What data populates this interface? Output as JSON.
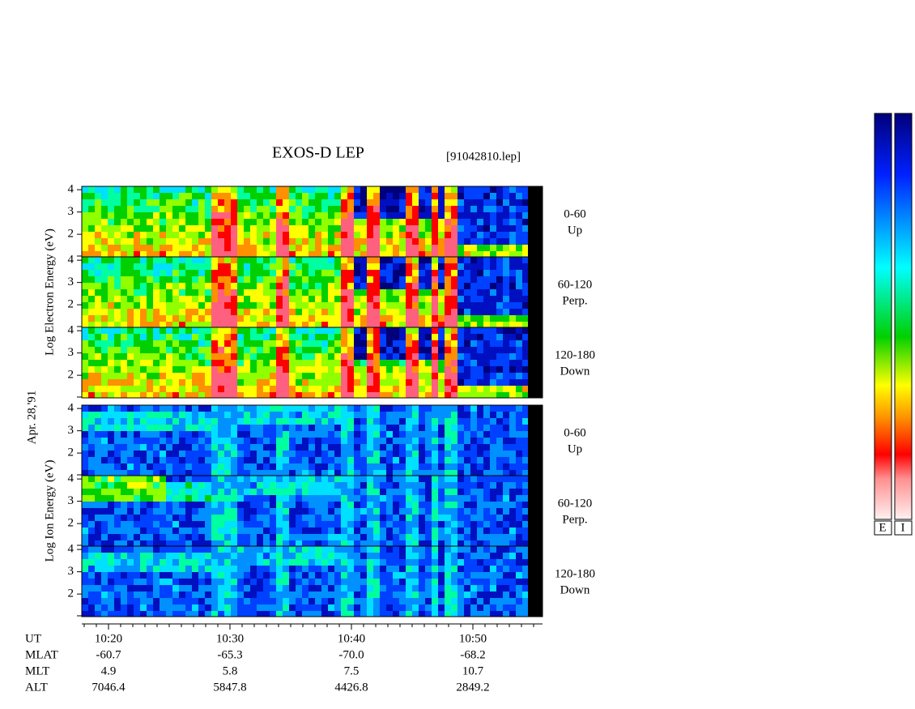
{
  "title": "EXOS-D LEP",
  "file": "[91042810.lep]",
  "date": "Apr. 28,'91",
  "groups": [
    {
      "label": "Log Electron Energy (eV)",
      "panels": [
        {
          "range": "0-60",
          "dir": "Up",
          "yticks": [
            4,
            3,
            2
          ]
        },
        {
          "range": "60-120",
          "dir": "Perp.",
          "yticks": [
            4,
            3,
            2
          ]
        },
        {
          "range": "120-180",
          "dir": "Down",
          "yticks": [
            4,
            3,
            2
          ]
        }
      ]
    },
    {
      "label": "Log Ion Energy (eV)",
      "panels": [
        {
          "range": "0-60",
          "dir": "Up",
          "yticks": [
            4,
            3,
            2
          ]
        },
        {
          "range": "60-120",
          "dir": "Perp.",
          "yticks": [
            4,
            3,
            2
          ]
        },
        {
          "range": "120-180",
          "dir": "Down",
          "yticks": [
            4,
            3,
            2
          ]
        }
      ]
    }
  ],
  "x_axis": {
    "rows": [
      {
        "name": "UT",
        "values": [
          "10:20",
          "10:30",
          "10:40",
          "10:50"
        ]
      },
      {
        "name": "MLAT",
        "values": [
          "-60.7",
          "-65.3",
          "-70.0",
          "-68.2"
        ]
      },
      {
        "name": "MLT",
        "values": [
          "4.9",
          "5.8",
          "7.5",
          "10.7"
        ]
      },
      {
        "name": "ALT",
        "values": [
          "7046.4",
          "5847.8",
          "4426.8",
          "2849.2"
        ]
      }
    ]
  },
  "colorbars": [
    "E",
    "I"
  ]
}
